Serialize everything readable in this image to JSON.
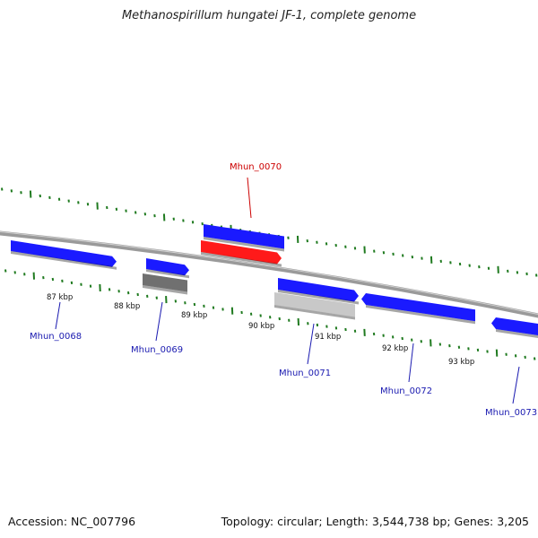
{
  "title": "Methanospirillum hungatei JF-1, complete genome",
  "footer": {
    "accession": "Accession: NC_007796",
    "summary": "Topology: circular; Length: 3,544,738 bp; Genes: 3,205"
  },
  "colors": {
    "backbone": "#888888",
    "tick": "#1f7a1f",
    "gene_forward": "#1a1aff",
    "gene_highlight": "#ff1a1a",
    "gene_pseudo": "#707070",
    "gene_rna": "#c8c8c8",
    "label_default": "#1a1ab0",
    "label_highlight": "#cc0000",
    "kbp_text": "#111111"
  },
  "scale_labels": [
    "87 kbp",
    "88 kbp",
    "89 kbp",
    "90 kbp",
    "91 kbp",
    "92 kbp",
    "93 kbp"
  ],
  "genes": [
    {
      "name": "Mhun_0068",
      "highlight": false
    },
    {
      "name": "Mhun_0069",
      "highlight": false
    },
    {
      "name": "Mhun_0070",
      "highlight": true
    },
    {
      "name": "Mhun_0071",
      "highlight": false
    },
    {
      "name": "Mhun_0072",
      "highlight": false
    },
    {
      "name": "Mhun_0073",
      "highlight": false
    }
  ]
}
